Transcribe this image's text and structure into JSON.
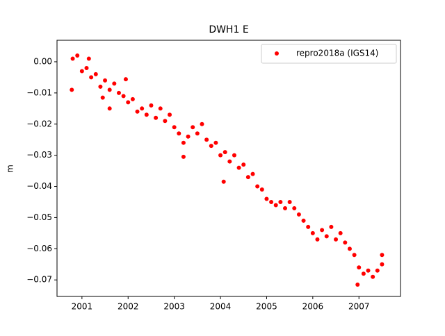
{
  "chart_data": {
    "type": "scatter",
    "title": "DWH1 E",
    "y_label": "m",
    "xlim": [
      2000.46,
      2007.9
    ],
    "xticks": [
      2001,
      2002,
      2003,
      2004,
      2005,
      2006,
      2007
    ],
    "ylim": [
      -0.0753,
      0.0069
    ],
    "yticks": [
      {
        "value": 0,
        "label": "0.00"
      },
      {
        "value": -0.01,
        "label": "−0.01"
      },
      {
        "value": -0.02,
        "label": "−0.02"
      },
      {
        "value": -0.03,
        "label": "−0.03"
      },
      {
        "value": -0.04,
        "label": "−0.04"
      },
      {
        "value": -0.05,
        "label": "−0.05"
      },
      {
        "value": -0.06,
        "label": "−0.06"
      },
      {
        "value": -0.07,
        "label": "−0.07"
      }
    ],
    "legend_position": "upper-right",
    "series": [
      {
        "name": "repro2018a (IGS14)",
        "color": "#ff0000",
        "x": [
          2000.8,
          2000.9,
          2001.0,
          2001.1,
          2001.2,
          2001.3,
          2001.4,
          2001.5,
          2001.6,
          2001.7,
          2001.8,
          2001.9,
          2002.0,
          2002.1,
          2002.2,
          2002.3,
          2002.4,
          2002.5,
          2002.6,
          2002.7,
          2002.8,
          2002.9,
          2003.0,
          2003.1,
          2003.2,
          2003.3,
          2003.4,
          2003.5,
          2003.6,
          2003.7,
          2003.8,
          2003.9,
          2004.0,
          2004.1,
          2004.2,
          2004.3,
          2004.4,
          2004.5,
          2004.6,
          2004.7,
          2004.8,
          2004.9,
          2005.0,
          2005.1,
          2005.2,
          2005.3,
          2005.4,
          2005.5,
          2005.6,
          2005.7,
          2005.8,
          2005.9,
          2006.0,
          2006.1,
          2006.2,
          2006.3,
          2006.4,
          2006.5,
          2006.6,
          2006.7,
          2006.8,
          2006.9,
          2007.0,
          2007.1,
          2007.2,
          2007.3,
          2007.4,
          2007.5,
          2000.78,
          2001.15,
          2001.45,
          2001.6,
          2001.95,
          2003.2,
          2004.07,
          2006.97,
          2007.5
        ],
        "values": [
          0.001,
          0.002,
          -0.003,
          -0.002,
          -0.005,
          -0.004,
          -0.008,
          -0.006,
          -0.009,
          -0.007,
          -0.01,
          -0.011,
          -0.013,
          -0.012,
          -0.016,
          -0.015,
          -0.017,
          -0.014,
          -0.018,
          -0.015,
          -0.019,
          -0.017,
          -0.021,
          -0.023,
          -0.026,
          -0.024,
          -0.021,
          -0.023,
          -0.02,
          -0.025,
          -0.027,
          -0.026,
          -0.03,
          -0.029,
          -0.032,
          -0.03,
          -0.034,
          -0.033,
          -0.037,
          -0.036,
          -0.04,
          -0.041,
          -0.044,
          -0.045,
          -0.046,
          -0.045,
          -0.047,
          -0.045,
          -0.047,
          -0.049,
          -0.051,
          -0.053,
          -0.055,
          -0.057,
          -0.054,
          -0.056,
          -0.053,
          -0.057,
          -0.055,
          -0.058,
          -0.06,
          -0.062,
          -0.066,
          -0.068,
          -0.067,
          -0.069,
          -0.067,
          -0.065,
          -0.009,
          0.001,
          -0.0115,
          -0.015,
          -0.0056,
          -0.0305,
          -0.0385,
          -0.0715,
          -0.062
        ]
      }
    ]
  }
}
